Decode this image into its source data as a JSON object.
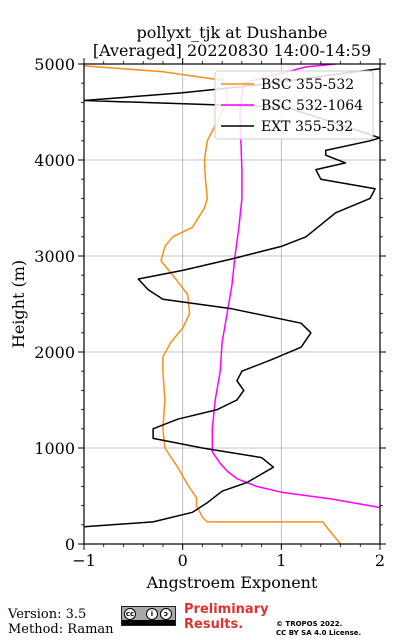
{
  "chart_data": {
    "type": "line",
    "title": "pollyxt_tjk at Dushanbe",
    "subtitle": "[Averaged] 20220830 14:00-14:59",
    "xlabel": "Angstroem Exponent",
    "ylabel": "Height (m)",
    "xlim": [
      -1,
      2
    ],
    "ylim": [
      0,
      5000
    ],
    "xticks": [
      "−1",
      "0",
      "1",
      "2"
    ],
    "yticks": [
      "0",
      "1000",
      "2000",
      "3000",
      "4000",
      "5000"
    ],
    "grid": true,
    "legend_position": "top-right",
    "series": [
      {
        "name": "BSC 355-532",
        "color": "#ff8c1a",
        "points": [
          [
            1.6,
            0
          ],
          [
            1.48,
            150
          ],
          [
            1.42,
            230
          ],
          [
            0.25,
            230
          ],
          [
            0.2,
            280
          ],
          [
            0.14,
            400
          ],
          [
            0.14,
            480
          ],
          [
            0.05,
            620
          ],
          [
            -0.05,
            800
          ],
          [
            -0.18,
            1000
          ],
          [
            -0.2,
            1200
          ],
          [
            -0.18,
            1500
          ],
          [
            -0.2,
            1800
          ],
          [
            -0.2,
            1950
          ],
          [
            -0.12,
            2100
          ],
          [
            0,
            2250
          ],
          [
            0.07,
            2400
          ],
          [
            0.05,
            2600
          ],
          [
            -0.1,
            2800
          ],
          [
            -0.22,
            2950
          ],
          [
            -0.18,
            3100
          ],
          [
            -0.1,
            3200
          ],
          [
            0.1,
            3300
          ],
          [
            0.22,
            3500
          ],
          [
            0.25,
            3600
          ],
          [
            0.23,
            3800
          ],
          [
            0.22,
            4000
          ],
          [
            0.25,
            4200
          ],
          [
            0.35,
            4400
          ],
          [
            0.45,
            4600
          ],
          [
            0.45,
            4700
          ],
          [
            0.4,
            4830
          ],
          [
            -0.2,
            4920
          ],
          [
            -1.0,
            4980
          ]
        ]
      },
      {
        "name": "BSC 532-1064",
        "color": "#ff00ff",
        "points": [
          [
            2.0,
            380
          ],
          [
            1.5,
            470
          ],
          [
            1.0,
            540
          ],
          [
            0.75,
            600
          ],
          [
            0.55,
            680
          ],
          [
            0.45,
            760
          ],
          [
            0.38,
            840
          ],
          [
            0.3,
            960
          ],
          [
            0.3,
            1200
          ],
          [
            0.33,
            1500
          ],
          [
            0.38,
            1800
          ],
          [
            0.4,
            2100
          ],
          [
            0.45,
            2400
          ],
          [
            0.5,
            2700
          ],
          [
            0.53,
            3000
          ],
          [
            0.57,
            3300
          ],
          [
            0.6,
            3600
          ],
          [
            0.6,
            3900
          ],
          [
            0.59,
            4200
          ],
          [
            0.58,
            4500
          ],
          [
            0.62,
            4800
          ],
          [
            1.25,
            4970
          ],
          [
            1.55,
            5000
          ]
        ]
      },
      {
        "name": "EXT 355-532",
        "color": "#000000",
        "points": [
          [
            -1.0,
            180
          ],
          [
            -0.3,
            230
          ],
          [
            0.1,
            330
          ],
          [
            0.25,
            430
          ],
          [
            0.4,
            550
          ],
          [
            0.65,
            640
          ],
          [
            0.92,
            800
          ],
          [
            0.8,
            900
          ],
          [
            0.2,
            1000
          ],
          [
            -0.3,
            1100
          ],
          [
            -0.3,
            1200
          ],
          [
            -0.05,
            1300
          ],
          [
            0.35,
            1400
          ],
          [
            0.55,
            1500
          ],
          [
            0.62,
            1600
          ],
          [
            0.55,
            1700
          ],
          [
            0.6,
            1800
          ],
          [
            0.9,
            1920
          ],
          [
            1.2,
            2050
          ],
          [
            1.3,
            2200
          ],
          [
            1.2,
            2300
          ],
          [
            0.5,
            2450
          ],
          [
            -0.2,
            2550
          ],
          [
            -0.35,
            2650
          ],
          [
            -0.45,
            2760
          ],
          [
            0.0,
            2850
          ],
          [
            0.5,
            2970
          ],
          [
            1.0,
            3100
          ],
          [
            1.25,
            3200
          ],
          [
            1.55,
            3450
          ],
          [
            1.9,
            3600
          ],
          [
            1.95,
            3700
          ],
          [
            1.4,
            3800
          ],
          [
            1.35,
            3900
          ],
          [
            1.65,
            3970
          ],
          [
            1.45,
            4050
          ],
          [
            1.45,
            4100
          ],
          [
            1.9,
            4200
          ],
          [
            2.0,
            4230
          ],
          [
            1.65,
            4350
          ],
          [
            1.05,
            4550
          ],
          [
            -1.0,
            4620
          ],
          [
            0.0,
            4700
          ],
          [
            0.75,
            4780
          ],
          [
            1.6,
            4900
          ],
          [
            2.0,
            4950
          ]
        ]
      }
    ]
  },
  "footer": {
    "version": "Version: 3.5",
    "method": "Method: Raman",
    "prelim_line1": "Preliminary",
    "prelim_line2": "Results.",
    "license_line1": "© TROPOS 2022.",
    "license_line2": "CC BY SA 4.0 License."
  }
}
